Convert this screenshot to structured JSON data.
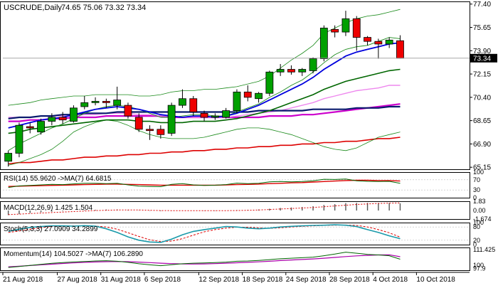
{
  "header": {
    "symbol_tf": "USCRUDE,Daily",
    "ohlc": "74.65 75.06 73.32 73.34"
  },
  "chart_data": [
    {
      "type": "candlestick",
      "ylim": [
        65.0,
        77.6
      ],
      "grid": false,
      "y_ticks": [
        {
          "v": 77.4,
          "label": "77.40"
        },
        {
          "v": 75.65,
          "label": "75.65"
        },
        {
          "v": 73.9,
          "label": "73.90"
        },
        {
          "v": 72.15,
          "label": "72.15"
        },
        {
          "v": 70.4,
          "label": "70.40"
        },
        {
          "v": 68.65,
          "label": "68.65"
        },
        {
          "v": 66.9,
          "label": "66.90"
        },
        {
          "v": 65.15,
          "label": "65.15"
        }
      ],
      "last_price": {
        "v": 73.34,
        "label": "73.34"
      },
      "x_labels": [
        "21 Aug 2018",
        "27 Aug 2018",
        "31 Aug 2018",
        "6 Sep 2018",
        "12 Sep 2018",
        "18 Sep 2018",
        "24 Sep 2018",
        "28 Sep 2018",
        "4 Oct 2018",
        "10 Oct 2018"
      ],
      "x_label_index": [
        0,
        5,
        9,
        13,
        18,
        22,
        26,
        30,
        34,
        38
      ],
      "candles": [
        {
          "o": 65.6,
          "h": 66.4,
          "l": 65.2,
          "c": 66.2
        },
        {
          "o": 66.2,
          "h": 68.5,
          "l": 65.9,
          "c": 68.3
        },
        {
          "o": 68.2,
          "h": 68.5,
          "l": 67.7,
          "c": 68.1
        },
        {
          "o": 67.8,
          "h": 68.8,
          "l": 67.6,
          "c": 68.6
        },
        {
          "o": 68.6,
          "h": 69.2,
          "l": 68.3,
          "c": 68.9
        },
        {
          "o": 68.9,
          "h": 69.3,
          "l": 68.4,
          "c": 68.7
        },
        {
          "o": 68.6,
          "h": 69.8,
          "l": 68.5,
          "c": 69.6
        },
        {
          "o": 69.7,
          "h": 70.5,
          "l": 69.5,
          "c": 70.0
        },
        {
          "o": 70.0,
          "h": 70.4,
          "l": 69.8,
          "c": 70.1
        },
        {
          "o": 70.1,
          "h": 70.3,
          "l": 69.6,
          "c": 70.0
        },
        {
          "o": 69.8,
          "h": 71.2,
          "l": 69.5,
          "c": 70.2
        },
        {
          "o": 69.8,
          "h": 70.0,
          "l": 68.8,
          "c": 69.0
        },
        {
          "o": 68.9,
          "h": 69.2,
          "l": 67.8,
          "c": 68.0
        },
        {
          "o": 68.0,
          "h": 68.3,
          "l": 67.2,
          "c": 67.9
        },
        {
          "o": 68.0,
          "h": 68.3,
          "l": 67.3,
          "c": 67.6
        },
        {
          "o": 67.7,
          "h": 70.0,
          "l": 67.5,
          "c": 69.8
        },
        {
          "o": 69.8,
          "h": 71.0,
          "l": 69.6,
          "c": 70.3
        },
        {
          "o": 70.3,
          "h": 70.5,
          "l": 69.0,
          "c": 69.3
        },
        {
          "o": 69.2,
          "h": 69.4,
          "l": 68.6,
          "c": 68.9
        },
        {
          "o": 68.9,
          "h": 69.2,
          "l": 68.7,
          "c": 69.0
        },
        {
          "o": 68.9,
          "h": 69.6,
          "l": 68.8,
          "c": 69.4
        },
        {
          "o": 69.4,
          "h": 71.0,
          "l": 69.2,
          "c": 70.8
        },
        {
          "o": 70.8,
          "h": 71.3,
          "l": 70.1,
          "c": 70.4
        },
        {
          "o": 70.3,
          "h": 70.8,
          "l": 70.0,
          "c": 70.7
        },
        {
          "o": 70.7,
          "h": 72.4,
          "l": 70.5,
          "c": 72.3
        },
        {
          "o": 72.3,
          "h": 72.9,
          "l": 72.0,
          "c": 72.5
        },
        {
          "o": 72.5,
          "h": 72.8,
          "l": 72.1,
          "c": 72.3
        },
        {
          "o": 72.3,
          "h": 72.6,
          "l": 72.0,
          "c": 72.5
        },
        {
          "o": 72.4,
          "h": 73.4,
          "l": 72.2,
          "c": 73.3
        },
        {
          "o": 73.3,
          "h": 75.8,
          "l": 73.1,
          "c": 75.6
        },
        {
          "o": 75.5,
          "h": 75.8,
          "l": 74.9,
          "c": 75.3
        },
        {
          "o": 75.3,
          "h": 76.9,
          "l": 75.0,
          "c": 76.3
        },
        {
          "o": 76.3,
          "h": 76.5,
          "l": 73.9,
          "c": 74.9
        },
        {
          "o": 74.9,
          "h": 75.0,
          "l": 74.3,
          "c": 74.6
        },
        {
          "o": 74.6,
          "h": 74.8,
          "l": 73.3,
          "c": 74.4
        },
        {
          "o": 74.4,
          "h": 74.9,
          "l": 74.1,
          "c": 74.7
        },
        {
          "o": 74.65,
          "h": 75.06,
          "l": 73.32,
          "c": 73.34
        }
      ],
      "bollinger_upper": [
        69.8,
        69.9,
        70.0,
        70.2,
        70.3,
        70.4,
        70.5,
        70.5,
        70.6,
        70.6,
        70.6,
        70.6,
        70.5,
        70.5,
        70.6,
        70.8,
        70.9,
        70.9,
        71.0,
        71.0,
        71.1,
        71.2,
        71.4,
        71.6,
        72.0,
        72.6,
        73.2,
        73.7,
        74.3,
        75.2,
        75.6,
        76.0,
        76.3,
        76.5,
        76.6,
        76.8,
        77.0
      ],
      "bollinger_lower": [
        65.3,
        65.5,
        65.8,
        66.1,
        66.5,
        67.1,
        67.8,
        68.2,
        68.5,
        68.7,
        68.6,
        68.3,
        67.9,
        67.6,
        67.4,
        67.3,
        67.3,
        67.3,
        67.4,
        67.6,
        67.8,
        68.0,
        68.1,
        68.1,
        68.0,
        67.8,
        67.6,
        67.3,
        67.0,
        66.7,
        66.5,
        66.4,
        66.6,
        67.0,
        67.4,
        67.6,
        67.8
      ],
      "ma_fast": [
        66.4,
        66.9,
        67.3,
        67.7,
        68.1,
        68.4,
        68.8,
        69.2,
        69.5,
        69.7,
        69.8,
        69.7,
        69.5,
        69.2,
        68.9,
        68.9,
        69.0,
        69.1,
        69.1,
        69.0,
        69.0,
        69.3,
        69.6,
        69.9,
        70.4,
        70.8,
        71.3,
        71.7,
        72.3,
        73.0,
        73.6,
        74.0,
        74.2,
        74.3,
        74.6,
        74.9,
        74.8
      ],
      "ma_blue": [
        68.1,
        68.3,
        68.5,
        68.7,
        68.8,
        68.9,
        69.1,
        69.3,
        69.5,
        69.6,
        69.7,
        69.6,
        69.5,
        69.3,
        69.1,
        69.0,
        68.9,
        69.0,
        69.0,
        68.9,
        69.0,
        69.2,
        69.5,
        69.8,
        70.2,
        70.6,
        71.0,
        71.4,
        71.9,
        72.5,
        73.0,
        73.5,
        73.8,
        74.0,
        74.2,
        74.4,
        74.5
      ],
      "ma_green": [
        67.7,
        67.8,
        68.0,
        68.1,
        68.2,
        68.3,
        68.4,
        68.5,
        68.6,
        68.7,
        68.7,
        68.7,
        68.6,
        68.6,
        68.5,
        68.5,
        68.5,
        68.6,
        68.6,
        68.6,
        68.7,
        68.8,
        69.0,
        69.2,
        69.4,
        69.7,
        70.0,
        70.3,
        70.6,
        71.0,
        71.3,
        71.6,
        71.8,
        72.0,
        72.2,
        72.4,
        72.5
      ],
      "ma_pink": [
        68.9,
        68.9,
        68.9,
        69.0,
        69.0,
        69.0,
        69.0,
        69.1,
        69.1,
        69.2,
        69.2,
        69.2,
        69.1,
        69.1,
        69.0,
        69.0,
        68.9,
        68.9,
        68.9,
        68.9,
        68.9,
        69.0,
        69.1,
        69.2,
        69.3,
        69.4,
        69.6,
        69.8,
        70.0,
        70.3,
        70.5,
        70.7,
        70.9,
        71.0,
        71.1,
        71.3,
        71.3
      ],
      "ma_magenta": [
        68.6,
        68.6,
        68.7,
        68.7,
        68.8,
        68.8,
        68.9,
        68.9,
        68.9,
        69.0,
        69.0,
        69.0,
        69.0,
        69.0,
        69.0,
        68.9,
        68.9,
        68.9,
        68.9,
        68.9,
        68.9,
        68.9,
        68.9,
        68.9,
        69.0,
        69.0,
        69.0,
        69.1,
        69.1,
        69.2,
        69.3,
        69.4,
        69.5,
        69.6,
        69.7,
        69.8,
        69.9
      ],
      "ma_navy": [
        68.8,
        68.9,
        68.9,
        69.0,
        69.0,
        69.1,
        69.1,
        69.2,
        69.2,
        69.2,
        69.3,
        69.3,
        69.3,
        69.3,
        69.3,
        69.3,
        69.3,
        69.3,
        69.3,
        69.3,
        69.3,
        69.3,
        69.3,
        69.4,
        69.4,
        69.4,
        69.4,
        69.4,
        69.5,
        69.5,
        69.5,
        69.5,
        69.6,
        69.6,
        69.6,
        69.7,
        69.7
      ],
      "ma_red": [
        65.4,
        65.5,
        65.5,
        65.6,
        65.7,
        65.7,
        65.8,
        65.9,
        65.9,
        66.0,
        66.0,
        66.1,
        66.1,
        66.2,
        66.2,
        66.3,
        66.3,
        66.4,
        66.4,
        66.5,
        66.5,
        66.6,
        66.6,
        66.7,
        66.7,
        66.8,
        66.8,
        66.9,
        66.9,
        67.0,
        67.0,
        67.1,
        67.1,
        67.2,
        67.3,
        67.3,
        67.4
      ]
    },
    {
      "type": "line",
      "title": "RSI(14) 55.9620 ->MA(7) 64.6815",
      "ylim": [
        0,
        100
      ],
      "y_ticks": [
        {
          "v": 100,
          "label": "100"
        },
        {
          "v": 70,
          "label": "70"
        },
        {
          "v": 30,
          "label": "30"
        },
        {
          "v": 0,
          "label": "0"
        }
      ],
      "rsi": [
        40,
        46,
        48,
        50,
        52,
        51,
        54,
        56,
        56,
        55,
        56,
        50,
        45,
        44,
        43,
        52,
        55,
        50,
        48,
        49,
        51,
        57,
        55,
        56,
        62,
        63,
        62,
        63,
        66,
        72,
        71,
        73,
        66,
        64,
        63,
        64,
        56
      ],
      "rsi_ma": [
        44,
        45,
        46,
        47,
        48,
        49,
        50,
        51,
        52,
        53,
        53,
        52,
        51,
        50,
        49,
        49,
        49,
        49,
        49,
        49,
        50,
        51,
        52,
        53,
        55,
        56,
        58,
        59,
        61,
        63,
        65,
        67,
        68,
        68,
        67,
        67,
        65
      ]
    },
    {
      "type": "bar",
      "title": "MACD(12,26,9) 1.425 1.504",
      "ylim": [
        -1.674,
        1.83
      ],
      "y_ticks": [
        {
          "v": 1.83,
          "label": "1.83"
        },
        {
          "v": 0,
          "label": "0.00"
        },
        {
          "v": -1.674,
          "label": "-1.674"
        }
      ],
      "macd_hist": [
        -0.9,
        -0.7,
        -0.5,
        -0.35,
        -0.2,
        -0.1,
        0.0,
        0.1,
        0.15,
        0.2,
        0.22,
        0.15,
        0.05,
        -0.05,
        -0.1,
        -0.05,
        0.0,
        0.0,
        -0.05,
        -0.05,
        0.0,
        0.1,
        0.15,
        0.2,
        0.35,
        0.5,
        0.6,
        0.7,
        0.85,
        1.1,
        1.25,
        1.45,
        1.5,
        1.5,
        1.48,
        1.47,
        1.42
      ],
      "signal": [
        -0.8,
        -0.7,
        -0.6,
        -0.5,
        -0.4,
        -0.3,
        -0.2,
        -0.1,
        0.0,
        0.05,
        0.1,
        0.12,
        0.1,
        0.05,
        0.0,
        -0.02,
        -0.02,
        -0.03,
        -0.03,
        -0.03,
        -0.02,
        0.0,
        0.05,
        0.1,
        0.2,
        0.3,
        0.4,
        0.5,
        0.6,
        0.75,
        0.9,
        1.05,
        1.2,
        1.3,
        1.4,
        1.45,
        1.5
      ]
    },
    {
      "type": "line",
      "title": "Stoch(5,3,3) 27.0909 34.2899",
      "ylim": [
        0,
        100
      ],
      "y_ticks": [
        {
          "v": 100,
          "label": "100"
        },
        {
          "v": 80,
          "label": "80"
        },
        {
          "v": 20,
          "label": "20"
        },
        {
          "v": 0,
          "label": "0"
        }
      ],
      "k": [
        60,
        70,
        78,
        82,
        85,
        85,
        84,
        86,
        84,
        72,
        55,
        35,
        20,
        12,
        10,
        25,
        45,
        60,
        68,
        75,
        82,
        80,
        75,
        72,
        75,
        80,
        83,
        85,
        87,
        88,
        90,
        88,
        82,
        68,
        55,
        40,
        27
      ],
      "d": [
        55,
        62,
        70,
        77,
        82,
        84,
        85,
        85,
        84,
        80,
        70,
        54,
        37,
        22,
        14,
        16,
        27,
        43,
        58,
        68,
        75,
        79,
        79,
        76,
        74,
        76,
        80,
        83,
        85,
        87,
        88,
        89,
        87,
        80,
        68,
        54,
        34
      ]
    },
    {
      "type": "line",
      "title": "Momentum(14) 104.5027 ->MA(7) 106.2890",
      "ylim": [
        96.5,
        113
      ],
      "y_ticks": [
        {
          "v": 111.425,
          "label": "111.425"
        },
        {
          "v": 100,
          "label": "100"
        },
        {
          "v": 97.9,
          "label": "97.9"
        }
      ],
      "momentum": [
        98.5,
        99.2,
        100.0,
        100.8,
        101.5,
        102.0,
        102.5,
        102.8,
        103.2,
        103.4,
        103.0,
        102.2,
        101.2,
        100.4,
        99.8,
        100.5,
        101.2,
        101.6,
        101.8,
        102.0,
        102.4,
        103.0,
        103.2,
        103.6,
        104.2,
        104.8,
        105.2,
        105.6,
        106.0,
        107.0,
        108.2,
        109.6,
        108.8,
        108.0,
        107.6,
        107.0,
        104.5
      ],
      "mom_ma": [
        99.0,
        99.4,
        99.9,
        100.4,
        100.9,
        101.4,
        101.8,
        102.2,
        102.5,
        102.7,
        102.8,
        102.7,
        102.4,
        102.0,
        101.6,
        101.3,
        101.1,
        101.0,
        101.1,
        101.3,
        101.6,
        101.9,
        102.2,
        102.6,
        103.0,
        103.5,
        103.9,
        104.3,
        104.7,
        105.2,
        105.8,
        106.4,
        106.9,
        107.3,
        107.6,
        107.7,
        106.3
      ]
    }
  ]
}
